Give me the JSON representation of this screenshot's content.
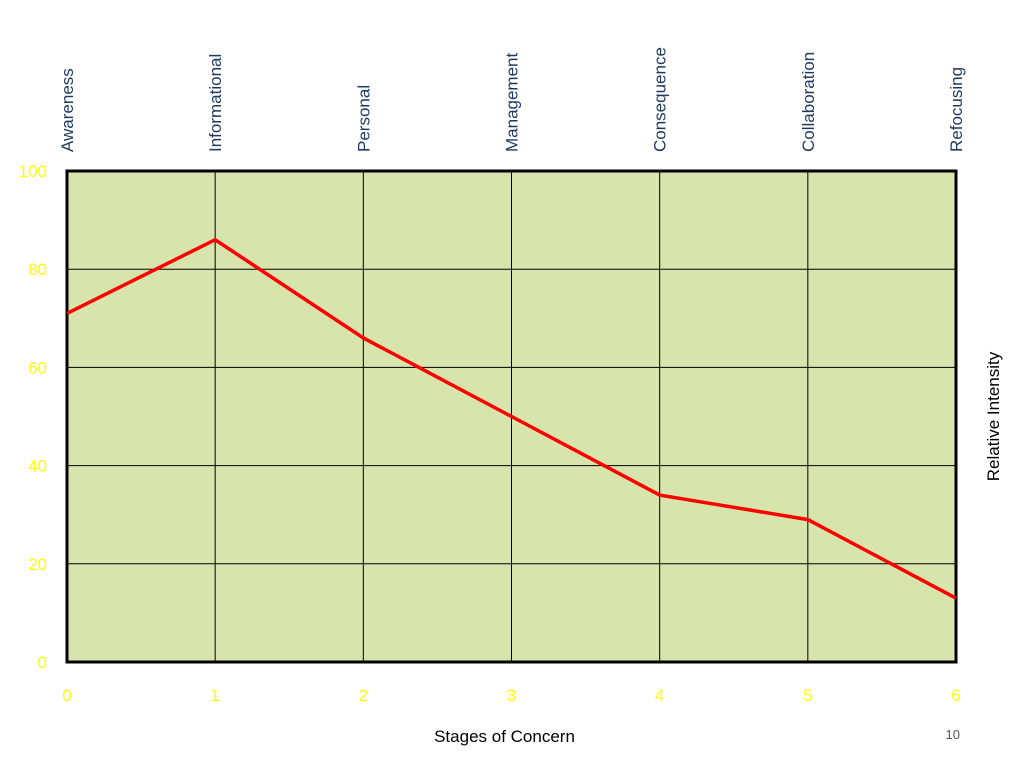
{
  "chart_data": {
    "type": "line",
    "x": [
      0,
      1,
      2,
      3,
      4,
      5,
      6
    ],
    "stage_names": [
      "Awareness",
      "Informational",
      "Personal",
      "Management",
      "Consequence",
      "Collaboration",
      "Refocusing"
    ],
    "series": [
      {
        "values": [
          71,
          86,
          66,
          50,
          34,
          29,
          13
        ]
      }
    ],
    "xlabel": "Stages of Concern",
    "ylabel": "Relative Intensity",
    "xlim": [
      0,
      6
    ],
    "ylim": [
      0,
      100
    ],
    "yticks": [
      0,
      20,
      40,
      60,
      80,
      100
    ],
    "xticks": [
      0,
      1,
      2,
      3,
      4,
      5,
      6
    ],
    "grid": true
  },
  "colors": {
    "plot_background": "#d7e4ac",
    "line": "#ff0000",
    "tick_labels": "#ffff00",
    "stage_labels": "#1f3a60",
    "grid": "#000000"
  },
  "slide": {
    "page_number": "10"
  }
}
